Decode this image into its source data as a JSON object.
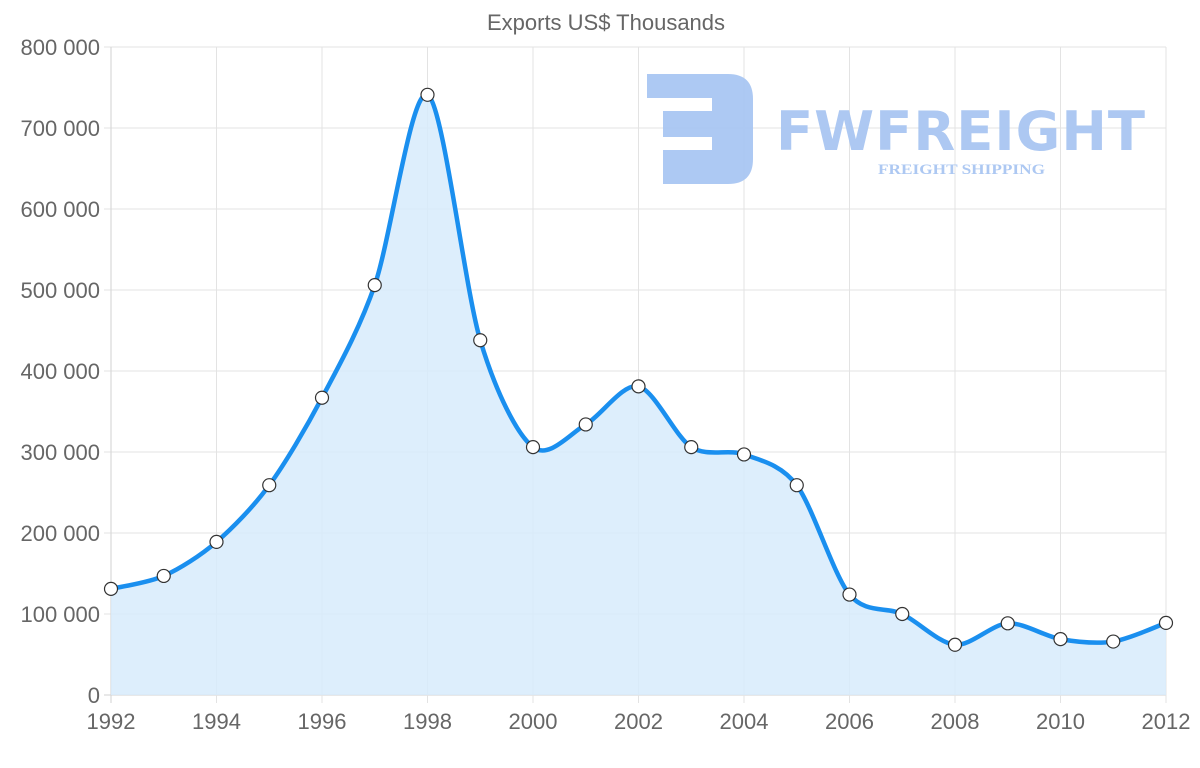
{
  "chart_data": {
    "type": "area",
    "title": "Exports US$ Thousands",
    "xlabel": "",
    "ylabel": "",
    "x": [
      1992,
      1993,
      1994,
      1995,
      1996,
      1997,
      1998,
      1999,
      2000,
      2001,
      2002,
      2003,
      2004,
      2005,
      2006,
      2007,
      2008,
      2009,
      2010,
      2011,
      2012
    ],
    "series": [
      {
        "name": "Exports US$ Thousands",
        "values": [
          131000,
          147000,
          189000,
          259000,
          367000,
          506000,
          741000,
          438000,
          306000,
          334000,
          381000,
          306000,
          297000,
          259000,
          124000,
          100000,
          62000,
          88500,
          69000,
          66000,
          89000
        ],
        "line_color": "#1a8fef",
        "fill_color": "#d7ebfc",
        "marker_fill": "#ffffff",
        "marker_stroke": "#333333"
      }
    ],
    "xlim": [
      1992,
      2012
    ],
    "ylim": [
      0,
      800000
    ],
    "x_ticks": [
      "1992",
      "1994",
      "1996",
      "1998",
      "2000",
      "2002",
      "2004",
      "2006",
      "2008",
      "2010",
      "2012"
    ],
    "y_ticks": [
      "0",
      "100 000",
      "200 000",
      "300 000",
      "400 000",
      "500 000",
      "600 000",
      "700 000",
      "800 000"
    ],
    "y_tick_values": [
      0,
      100000,
      200000,
      300000,
      400000,
      500000,
      600000,
      700000,
      800000
    ],
    "grid": true,
    "legend": "none"
  },
  "watermark": {
    "brand": "FWFREIGHT",
    "tagline": "FREIGHT SHIPPING",
    "color": "#a9c6f2"
  }
}
